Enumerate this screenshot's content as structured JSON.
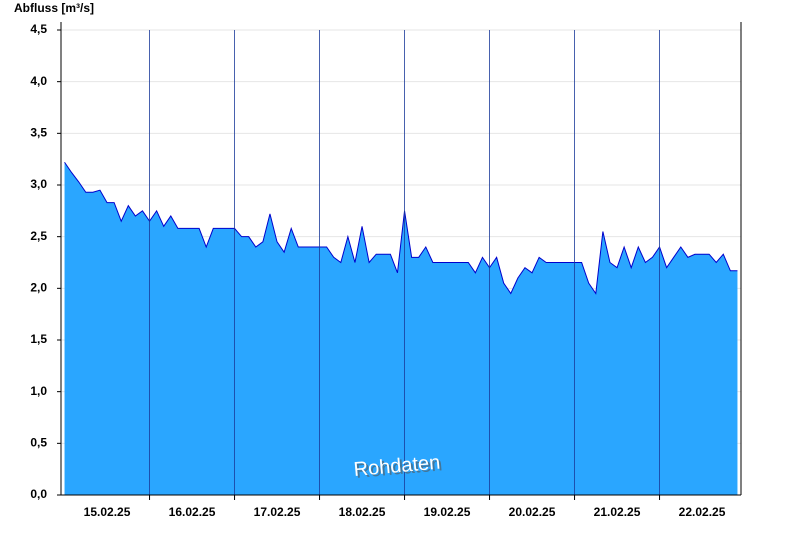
{
  "chart_data": {
    "type": "area",
    "y_axis_label": "Abfluss [m³/s]",
    "annotation": "Rohdaten",
    "color": "#2aa6ff",
    "line_color": "#0000cc",
    "categories": [
      null,
      null,
      null,
      null,
      null,
      null,
      "15.02.25",
      null,
      null,
      null,
      null,
      null,
      null,
      null,
      null,
      null,
      null,
      null,
      "16.02.25",
      null,
      null,
      null,
      null,
      null,
      null,
      null,
      null,
      null,
      null,
      null,
      "17.02.25",
      null,
      null,
      null,
      null,
      null,
      null,
      null,
      null,
      null,
      null,
      null,
      "18.02.25",
      null,
      null,
      null,
      null,
      null,
      null,
      null,
      null,
      null,
      null,
      null,
      "19.02.25",
      null,
      null,
      null,
      null,
      null,
      null,
      null,
      null,
      null,
      null,
      null,
      "20.02.25",
      null,
      null,
      null,
      null,
      null,
      null,
      null,
      null,
      null,
      null,
      null,
      "21.02.25",
      null,
      null,
      null,
      null,
      null,
      null,
      null,
      null,
      null,
      null,
      null,
      "22.02.25",
      null,
      null,
      null,
      null,
      null
    ],
    "values": [
      3.22,
      3.12,
      3.03,
      2.93,
      2.93,
      2.95,
      2.83,
      2.83,
      2.65,
      2.8,
      2.7,
      2.75,
      2.65,
      2.75,
      2.6,
      2.7,
      2.58,
      2.58,
      2.58,
      2.58,
      2.4,
      2.58,
      2.58,
      2.58,
      2.58,
      2.5,
      2.5,
      2.4,
      2.45,
      2.72,
      2.45,
      2.35,
      2.58,
      2.4,
      2.4,
      2.4,
      2.4,
      2.4,
      2.3,
      2.25,
      2.5,
      2.25,
      2.6,
      2.25,
      2.33,
      2.33,
      2.33,
      2.15,
      2.75,
      2.3,
      2.3,
      2.4,
      2.25,
      2.25,
      2.25,
      2.25,
      2.25,
      2.25,
      2.15,
      2.3,
      2.2,
      2.3,
      2.05,
      1.95,
      2.1,
      2.2,
      2.15,
      2.3,
      2.25,
      2.25,
      2.25,
      2.25,
      2.25,
      2.25,
      2.05,
      1.95,
      2.55,
      2.25,
      2.2,
      2.4,
      2.2,
      2.4,
      2.25,
      2.3,
      2.4,
      2.2,
      2.3,
      2.4,
      2.3,
      2.33,
      2.33,
      2.33,
      2.25,
      2.33,
      2.17,
      2.17
    ],
    "ylim": [
      0,
      4.5
    ],
    "yticks": [
      {
        "value": 0,
        "label": "0,0"
      },
      {
        "value": 0.5,
        "label": "0,5"
      },
      {
        "value": 1,
        "label": "1,0"
      },
      {
        "value": 1.5,
        "label": "1,5"
      },
      {
        "value": 2,
        "label": "2,0"
      },
      {
        "value": 2.5,
        "label": "2,5"
      },
      {
        "value": 3,
        "label": "3,0"
      },
      {
        "value": 3.5,
        "label": "3,5"
      },
      {
        "value": 4,
        "label": "4,0"
      },
      {
        "value": 4.5,
        "label": "4,5"
      }
    ],
    "grid": true
  }
}
